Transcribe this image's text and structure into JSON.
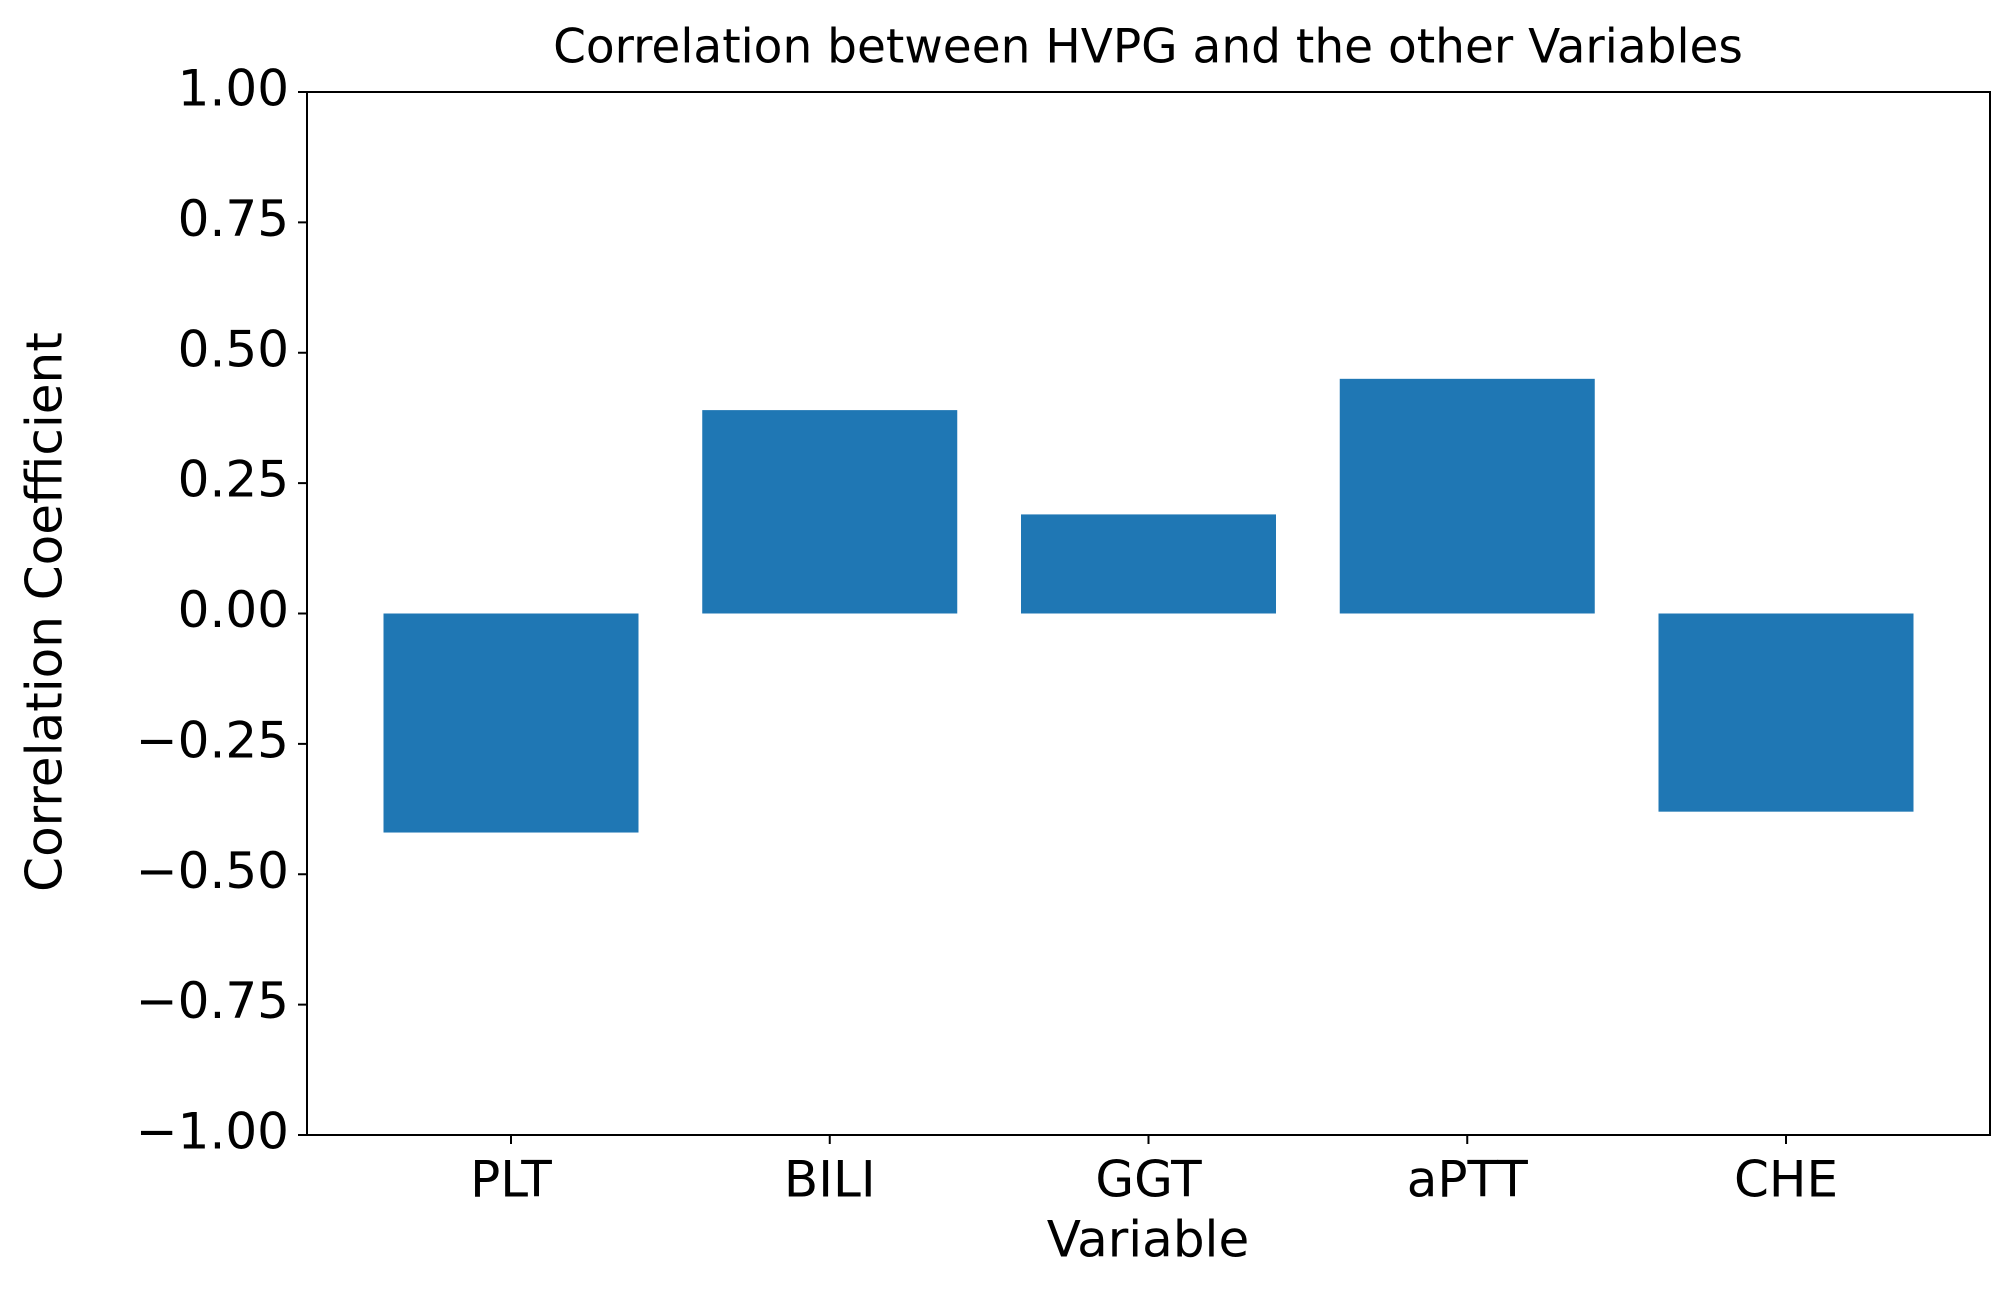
{
  "chart_data": {
    "type": "bar",
    "title": "Correlation between HVPG and the other Variables",
    "x_label": "Variable",
    "y_label": "Correlation Coefficient",
    "categories": [
      "PLT",
      "BILI",
      "GGT",
      "aPTT",
      "CHE"
    ],
    "values": [
      -0.42,
      0.39,
      0.19,
      0.45,
      -0.38
    ],
    "color": "#1f77b4",
    "ylim": [
      -1,
      1
    ],
    "yticks": [
      {
        "value": -1,
        "label": "−1.00"
      },
      {
        "value": -0.75,
        "label": "−0.75"
      },
      {
        "value": -0.5,
        "label": "−0.50"
      },
      {
        "value": -0.25,
        "label": "−0.25"
      },
      {
        "value": 0,
        "label": "0.00"
      },
      {
        "value": 0.25,
        "label": "0.25"
      },
      {
        "value": 0.5,
        "label": "0.50"
      },
      {
        "value": 0.75,
        "label": "0.75"
      },
      {
        "value": 1,
        "label": "1.00"
      }
    ],
    "grid": false
  }
}
